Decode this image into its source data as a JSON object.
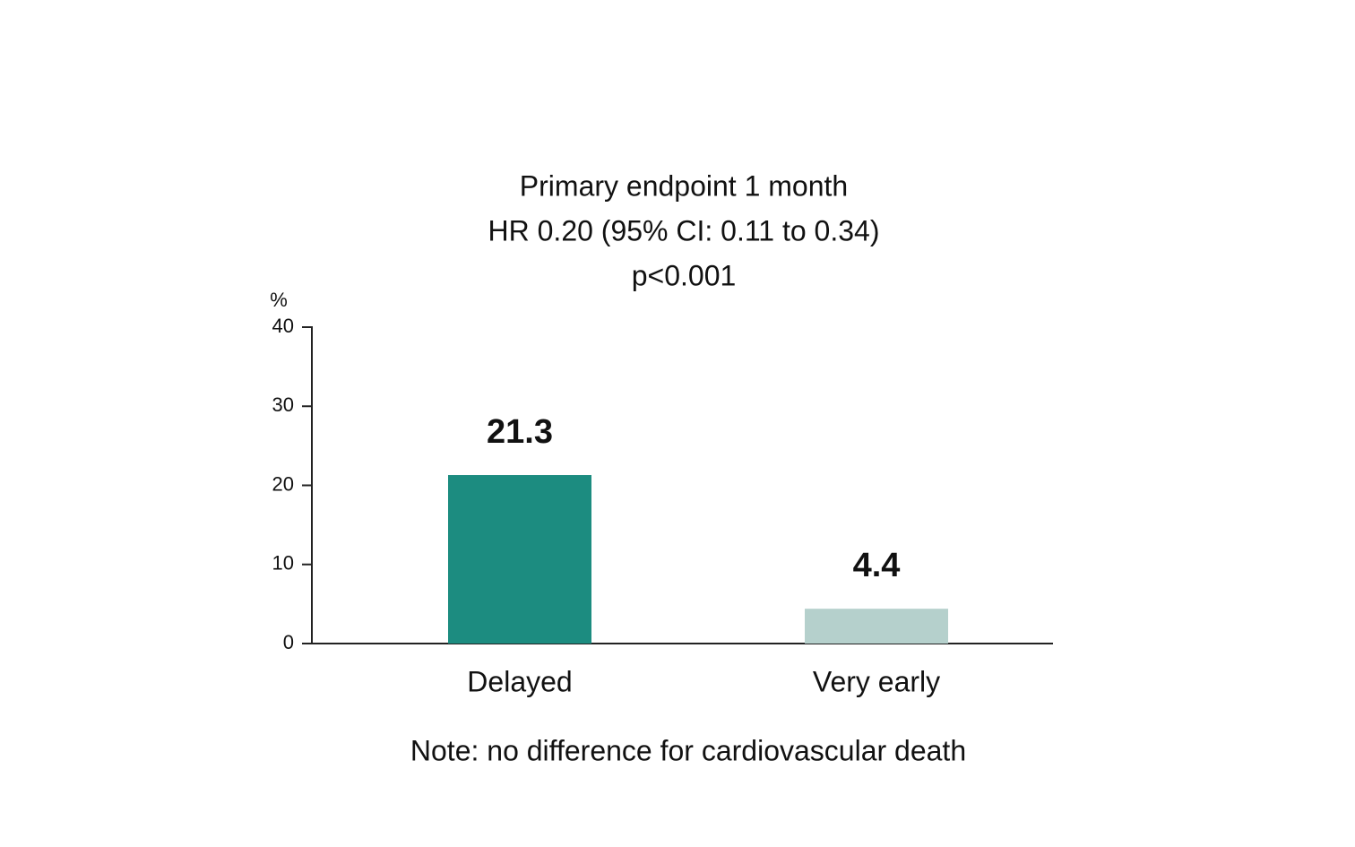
{
  "chart_data": {
    "type": "bar",
    "title": [
      "Primary endpoint 1 month",
      "HR 0.20 (95% CI: 0.11 to 0.34)",
      "p<0.001"
    ],
    "ylabel": "%",
    "categories": [
      "Delayed",
      "Very early"
    ],
    "values": [
      21.3,
      4.4
    ],
    "colors": [
      "#1c8c80",
      "#b5d0cc"
    ],
    "ylim": [
      0,
      40
    ],
    "yticks": [
      0,
      10,
      20,
      30,
      40
    ],
    "note": "Note: no difference for cardiovascular death"
  }
}
